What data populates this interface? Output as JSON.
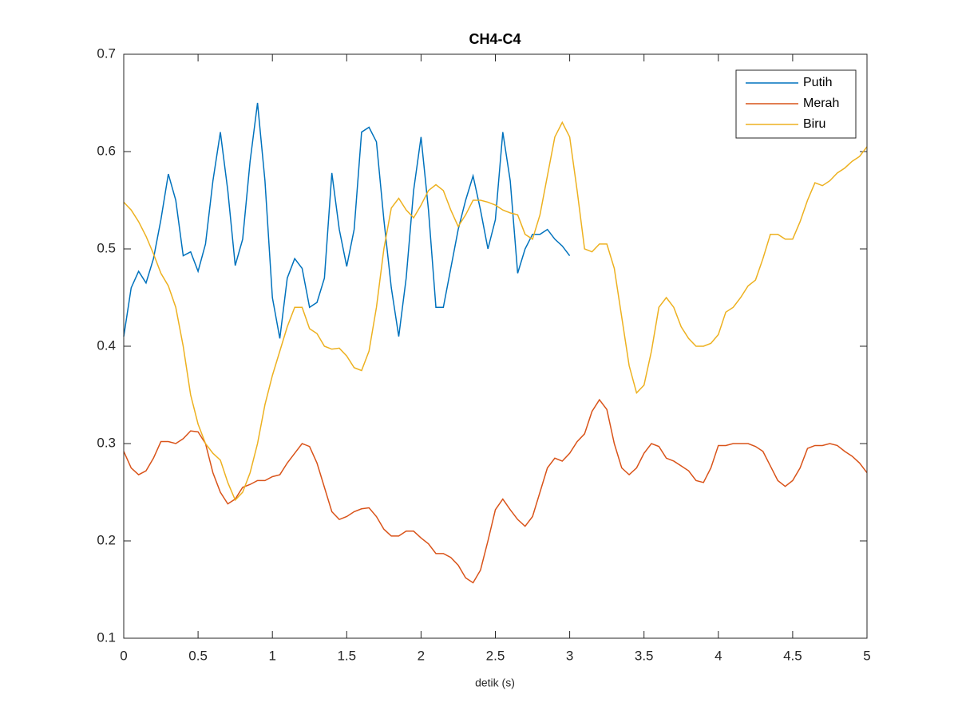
{
  "chart_data": {
    "type": "line",
    "title": "CH4-C4",
    "x_label": "detik (s)",
    "x": [
      0,
      0.05,
      0.1,
      0.15,
      0.2,
      0.25,
      0.3,
      0.35,
      0.4,
      0.45,
      0.5,
      0.55,
      0.6,
      0.65,
      0.7,
      0.75,
      0.8,
      0.85,
      0.9,
      0.95,
      1,
      1.05,
      1.1,
      1.15,
      1.2,
      1.25,
      1.3,
      1.35,
      1.4,
      1.45,
      1.5,
      1.55,
      1.6,
      1.65,
      1.7,
      1.75,
      1.8,
      1.85,
      1.9,
      1.95,
      2,
      2.05,
      2.1,
      2.15,
      2.2,
      2.25,
      2.3,
      2.35,
      2.4,
      2.45,
      2.5,
      2.55,
      2.6,
      2.65,
      2.7,
      2.75,
      2.8,
      2.85,
      2.9,
      2.95,
      3,
      3.05,
      3.1,
      3.15,
      3.2,
      3.25,
      3.3,
      3.35,
      3.4,
      3.45,
      3.5,
      3.55,
      3.6,
      3.65,
      3.7,
      3.75,
      3.8,
      3.85,
      3.9,
      3.95,
      4,
      4.05,
      4.1,
      4.15,
      4.2,
      4.25,
      4.3,
      4.35,
      4.4,
      4.45,
      4.5,
      4.55,
      4.6,
      4.65,
      4.7,
      4.75,
      4.8,
      4.85,
      4.9,
      4.95,
      5
    ],
    "series": [
      {
        "name": "Putih",
        "color": "#0072bd",
        "values": [
          0.41,
          0.46,
          0.477,
          0.465,
          0.49,
          0.53,
          0.577,
          0.55,
          0.493,
          0.497,
          0.477,
          0.505,
          0.57,
          0.62,
          0.56,
          0.483,
          0.51,
          0.59,
          0.65,
          0.57,
          0.45,
          0.408,
          0.47,
          0.49,
          0.48,
          0.44,
          0.445,
          0.47,
          0.578,
          0.52,
          0.482,
          0.52,
          0.62,
          0.625,
          0.61,
          0.53,
          0.46,
          0.41,
          0.47,
          0.56,
          0.615,
          0.54,
          0.44,
          0.44,
          0.48,
          0.52,
          0.55,
          0.575,
          0.54,
          0.5,
          0.53,
          0.62,
          0.57,
          0.475,
          0.5,
          0.515,
          0.515,
          0.52,
          0.51,
          0.503,
          0.493,
          null,
          null,
          null,
          null,
          null,
          null,
          null,
          null,
          null,
          null,
          null,
          null,
          null,
          null,
          null,
          null,
          null,
          null,
          null,
          null,
          null,
          null,
          null,
          null,
          null,
          null,
          null,
          null,
          null,
          null,
          null,
          null,
          null,
          null,
          null,
          null,
          null,
          null,
          null,
          null
        ]
      },
      {
        "name": "Merah",
        "color": "#d95319",
        "values": [
          0.292,
          0.275,
          0.268,
          0.272,
          0.285,
          0.302,
          0.302,
          0.3,
          0.305,
          0.313,
          0.312,
          0.3,
          0.27,
          0.25,
          0.238,
          0.243,
          0.255,
          0.258,
          0.262,
          0.262,
          0.266,
          0.268,
          0.28,
          0.29,
          0.3,
          0.297,
          0.28,
          0.255,
          0.23,
          0.222,
          0.225,
          0.23,
          0.233,
          0.234,
          0.225,
          0.212,
          0.205,
          0.205,
          0.21,
          0.21,
          0.203,
          0.197,
          0.187,
          0.187,
          0.183,
          0.175,
          0.162,
          0.157,
          0.17,
          0.2,
          0.232,
          0.243,
          0.232,
          0.222,
          0.215,
          0.225,
          0.25,
          0.275,
          0.285,
          0.282,
          0.29,
          0.302,
          0.31,
          0.333,
          0.345,
          0.335,
          0.3,
          0.275,
          0.268,
          0.275,
          0.29,
          0.3,
          0.297,
          0.285,
          0.282,
          0.277,
          0.272,
          0.262,
          0.26,
          0.275,
          0.298,
          0.298,
          0.3,
          0.3,
          0.3,
          0.297,
          0.292,
          0.277,
          0.262,
          0.256,
          0.262,
          0.275,
          0.295,
          0.298,
          0.298,
          0.3,
          0.298,
          0.292,
          0.287,
          0.28,
          0.27
        ]
      },
      {
        "name": "Biru",
        "color": "#edb120",
        "values": [
          0.548,
          0.54,
          0.528,
          0.513,
          0.495,
          0.475,
          0.462,
          0.44,
          0.4,
          0.35,
          0.32,
          0.3,
          0.29,
          0.283,
          0.26,
          0.242,
          0.25,
          0.27,
          0.3,
          0.34,
          0.37,
          0.395,
          0.42,
          0.44,
          0.44,
          0.418,
          0.413,
          0.4,
          0.397,
          0.398,
          0.39,
          0.378,
          0.375,
          0.395,
          0.44,
          0.5,
          0.542,
          0.552,
          0.54,
          0.532,
          0.545,
          0.56,
          0.566,
          0.56,
          0.54,
          0.523,
          0.535,
          0.55,
          0.55,
          0.548,
          0.545,
          0.54,
          0.537,
          0.535,
          0.515,
          0.51,
          0.535,
          0.575,
          0.615,
          0.63,
          0.615,
          0.56,
          0.5,
          0.497,
          0.505,
          0.505,
          0.48,
          0.43,
          0.38,
          0.352,
          0.36,
          0.395,
          0.44,
          0.45,
          0.44,
          0.42,
          0.408,
          0.4,
          0.4,
          0.403,
          0.412,
          0.435,
          0.44,
          0.45,
          0.462,
          0.468,
          0.49,
          0.515,
          0.515,
          0.51,
          0.51,
          0.528,
          0.55,
          0.568,
          0.565,
          0.57,
          0.578,
          0.583,
          0.59,
          0.595,
          0.605
        ]
      }
    ],
    "xlim": [
      0,
      5
    ],
    "xticks": [
      0,
      0.5,
      1,
      1.5,
      2,
      2.5,
      3,
      3.5,
      4,
      4.5,
      5
    ],
    "ylim": [
      0.1,
      0.7
    ],
    "yticks": [
      0.1,
      0.2,
      0.3,
      0.4,
      0.5,
      0.6,
      0.7
    ],
    "legend": "northeast",
    "grid": false
  }
}
